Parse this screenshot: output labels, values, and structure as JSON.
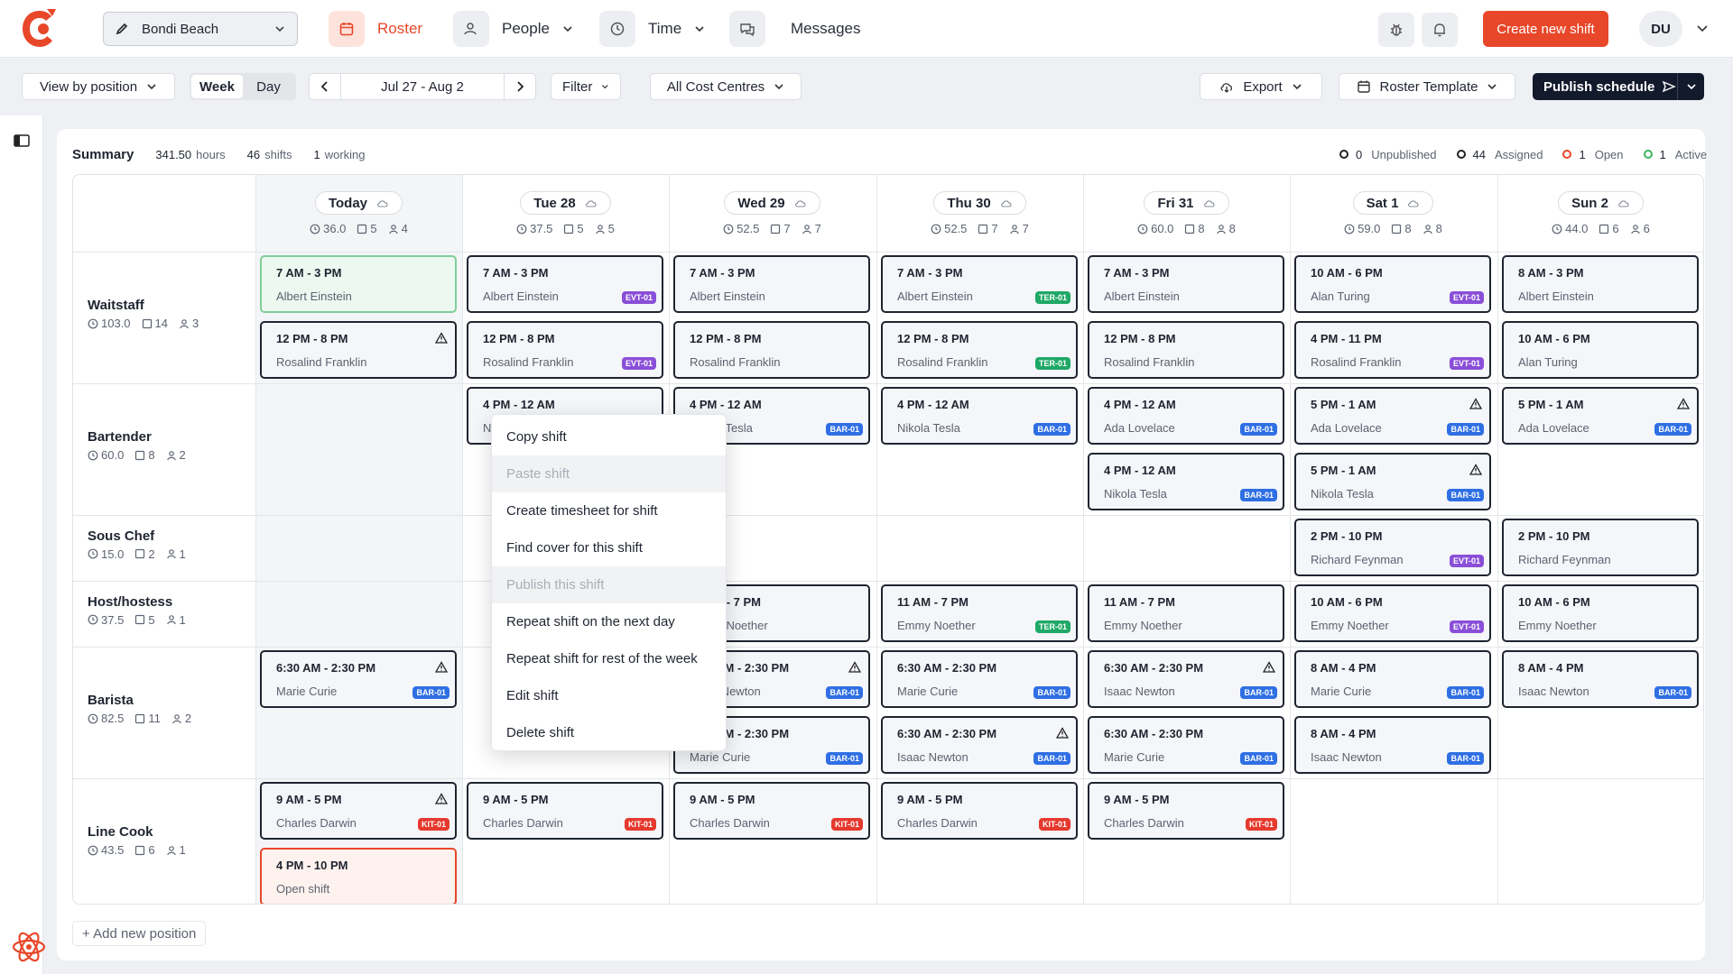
{
  "topbar": {
    "location": "Bondi Beach",
    "nav": [
      {
        "label": "Roster",
        "icon": "calendar-icon",
        "active": true
      },
      {
        "label": "People",
        "icon": "people-icon"
      },
      {
        "label": "Time",
        "icon": "clock-icon"
      },
      {
        "label": "Messages",
        "icon": "chat-icon"
      }
    ],
    "create_label": "Create new shift",
    "avatar_initials": "DU"
  },
  "toolbar": {
    "view_by": "View by position",
    "week_label": "Week",
    "day_label": "Day",
    "date_range": "Jul 27 - Aug 2",
    "filter_label": "Filter",
    "cost_centres": "All Cost Centres",
    "export_label": "Export",
    "template_label": "Roster Template",
    "publish_label": "Publish schedule"
  },
  "summary": {
    "label": "Summary",
    "hours_value": "341.50",
    "hours_unit": "hours",
    "shifts_value": "46",
    "shifts_unit": "shifts",
    "working_value": "1",
    "working_unit": "working",
    "legend": [
      {
        "count": "0",
        "label": "Unpublished",
        "color": "#222222"
      },
      {
        "count": "44",
        "label": "Assigned",
        "color": "#222222"
      },
      {
        "count": "1",
        "label": "Open",
        "color": "#e8472a"
      },
      {
        "count": "1",
        "label": "Active",
        "color": "#3bb55c"
      }
    ]
  },
  "days": [
    {
      "label": "Today",
      "hours": "36.0",
      "shifts": "5",
      "people": "4",
      "icon": "cloud-icon"
    },
    {
      "label": "Tue 28",
      "hours": "37.5",
      "shifts": "5",
      "people": "5",
      "icon": "rain-icon"
    },
    {
      "label": "Wed 29",
      "hours": "52.5",
      "shifts": "7",
      "people": "7",
      "icon": "cloud-icon"
    },
    {
      "label": "Thu 30",
      "hours": "52.5",
      "shifts": "7",
      "people": "7",
      "icon": "sun-icon"
    },
    {
      "label": "Fri 31",
      "hours": "60.0",
      "shifts": "8",
      "people": "8",
      "icon": "storm-icon"
    },
    {
      "label": "Sat 1",
      "hours": "59.0",
      "shifts": "8",
      "people": "8",
      "icon": "storm-icon"
    },
    {
      "label": "Sun 2",
      "hours": "44.0",
      "shifts": "6",
      "people": "6",
      "icon": "cloud-icon"
    }
  ],
  "positions": [
    {
      "name": "Waitstaff",
      "hours": "103.0",
      "shifts": "14",
      "people": "3"
    },
    {
      "name": "Bartender",
      "hours": "60.0",
      "shifts": "8",
      "people": "2"
    },
    {
      "name": "Sous Chef",
      "hours": "15.0",
      "shifts": "2",
      "people": "1"
    },
    {
      "name": "Host/hostess",
      "hours": "37.5",
      "shifts": "5",
      "people": "1"
    },
    {
      "name": "Barista",
      "hours": "82.5",
      "shifts": "11",
      "people": "2"
    },
    {
      "name": "Line Cook",
      "hours": "43.5",
      "shifts": "6",
      "people": "1"
    }
  ],
  "shifts": [
    {
      "day": 0,
      "slot": 0,
      "time": "7 AM - 3 PM",
      "name": "Albert Einstein",
      "state": "active"
    },
    {
      "day": 1,
      "slot": 0,
      "time": "7 AM - 3 PM",
      "name": "Albert Einstein",
      "badge": "EVT-01"
    },
    {
      "day": 2,
      "slot": 0,
      "time": "7 AM - 3 PM",
      "name": "Albert Einstein"
    },
    {
      "day": 3,
      "slot": 0,
      "time": "7 AM - 3 PM",
      "name": "Albert Einstein",
      "badge": "TER-01"
    },
    {
      "day": 4,
      "slot": 0,
      "time": "7 AM - 3 PM",
      "name": "Albert Einstein"
    },
    {
      "day": 5,
      "slot": 0,
      "time": "10 AM - 6 PM",
      "name": "Alan Turing",
      "badge": "EVT-01"
    },
    {
      "day": 6,
      "slot": 0,
      "time": "8 AM - 3 PM",
      "name": "Albert Einstein"
    },
    {
      "day": 0,
      "slot": 1,
      "time": "12 PM - 8 PM",
      "name": "Rosalind Franklin",
      "warn": true
    },
    {
      "day": 1,
      "slot": 1,
      "time": "12 PM - 8 PM",
      "name": "Rosalind Franklin",
      "badge": "EVT-01"
    },
    {
      "day": 2,
      "slot": 1,
      "time": "12 PM - 8 PM",
      "name": "Rosalind Franklin"
    },
    {
      "day": 3,
      "slot": 1,
      "time": "12 PM - 8 PM",
      "name": "Rosalind Franklin",
      "badge": "TER-01"
    },
    {
      "day": 4,
      "slot": 1,
      "time": "12 PM - 8 PM",
      "name": "Rosalind Franklin"
    },
    {
      "day": 5,
      "slot": 1,
      "time": "4 PM - 11 PM",
      "name": "Rosalind Franklin",
      "badge": "EVT-01"
    },
    {
      "day": 6,
      "slot": 1,
      "time": "10 AM - 6 PM",
      "name": "Alan Turing"
    },
    {
      "day": 1,
      "slot": 2,
      "time": "4 PM - 12 AM",
      "name": "Nikola Tesla"
    },
    {
      "day": 2,
      "slot": 2,
      "time": "4 PM - 12 AM",
      "name": "Nikola Tesla",
      "badge": "BAR-01"
    },
    {
      "day": 3,
      "slot": 2,
      "time": "4 PM - 12 AM",
      "name": "Nikola Tesla",
      "badge": "BAR-01"
    },
    {
      "day": 4,
      "slot": 2,
      "time": "4 PM - 12 AM",
      "name": "Ada Lovelace",
      "badge": "BAR-01"
    },
    {
      "day": 5,
      "slot": 2,
      "time": "5 PM - 1 AM",
      "name": "Ada Lovelace",
      "badge": "BAR-01",
      "warn": true
    },
    {
      "day": 6,
      "slot": 2,
      "time": "5 PM - 1 AM",
      "name": "Ada Lovelace",
      "badge": "BAR-01",
      "warn": true
    },
    {
      "day": 4,
      "slot": 3,
      "time": "4 PM - 12 AM",
      "name": "Nikola Tesla",
      "badge": "BAR-01"
    },
    {
      "day": 5,
      "slot": 3,
      "time": "5 PM - 1 AM",
      "name": "Nikola Tesla",
      "badge": "BAR-01",
      "warn": true
    },
    {
      "day": 5,
      "slot": 4,
      "time": "2 PM - 10 PM",
      "name": "Richard Feynman",
      "badge": "EVT-01"
    },
    {
      "day": 6,
      "slot": 4,
      "time": "2 PM - 10 PM",
      "name": "Richard Feynman"
    },
    {
      "day": 2,
      "slot": 5,
      "time": "11 AM - 7 PM",
      "name": "Emmy Noether"
    },
    {
      "day": 3,
      "slot": 5,
      "time": "11 AM - 7 PM",
      "name": "Emmy Noether",
      "badge": "TER-01"
    },
    {
      "day": 4,
      "slot": 5,
      "time": "11 AM - 7 PM",
      "name": "Emmy Noether"
    },
    {
      "day": 5,
      "slot": 5,
      "time": "10 AM - 6 PM",
      "name": "Emmy Noether",
      "badge": "EVT-01"
    },
    {
      "day": 6,
      "slot": 5,
      "time": "10 AM - 6 PM",
      "name": "Emmy Noether"
    },
    {
      "day": 0,
      "slot": 6,
      "time": "6:30 AM - 2:30 PM",
      "name": "Marie Curie",
      "badge": "BAR-01",
      "warn": true
    },
    {
      "day": 2,
      "slot": 6,
      "time": "6:30 AM - 2:30 PM",
      "name": "Isaac Newton",
      "badge": "BAR-01",
      "warn": true
    },
    {
      "day": 3,
      "slot": 6,
      "time": "6:30 AM - 2:30 PM",
      "name": "Marie Curie",
      "badge": "BAR-01"
    },
    {
      "day": 4,
      "slot": 6,
      "time": "6:30 AM - 2:30 PM",
      "name": "Isaac Newton",
      "badge": "BAR-01",
      "warn": true
    },
    {
      "day": 5,
      "slot": 6,
      "time": "8 AM - 4 PM",
      "name": "Marie Curie",
      "badge": "BAR-01"
    },
    {
      "day": 6,
      "slot": 6,
      "time": "8 AM - 4 PM",
      "name": "Isaac Newton",
      "badge": "BAR-01"
    },
    {
      "day": 2,
      "slot": 7,
      "time": "6:30 AM - 2:30 PM",
      "name": "Marie Curie",
      "badge": "BAR-01"
    },
    {
      "day": 3,
      "slot": 7,
      "time": "6:30 AM - 2:30 PM",
      "name": "Isaac Newton",
      "badge": "BAR-01",
      "warn": true
    },
    {
      "day": 4,
      "slot": 7,
      "time": "6:30 AM - 2:30 PM",
      "name": "Marie Curie",
      "badge": "BAR-01"
    },
    {
      "day": 5,
      "slot": 7,
      "time": "8 AM - 4 PM",
      "name": "Isaac Newton",
      "badge": "BAR-01"
    },
    {
      "day": 0,
      "slot": 8,
      "time": "9 AM - 5 PM",
      "name": "Charles Darwin",
      "badge": "KIT-01",
      "warn": true
    },
    {
      "day": 1,
      "slot": 8,
      "time": "9 AM - 5 PM",
      "name": "Charles Darwin",
      "badge": "KIT-01"
    },
    {
      "day": 2,
      "slot": 8,
      "time": "9 AM - 5 PM",
      "name": "Charles Darwin",
      "badge": "KIT-01"
    },
    {
      "day": 3,
      "slot": 8,
      "time": "9 AM - 5 PM",
      "name": "Charles Darwin",
      "badge": "KIT-01"
    },
    {
      "day": 4,
      "slot": 8,
      "time": "9 AM - 5 PM",
      "name": "Charles Darwin",
      "badge": "KIT-01"
    },
    {
      "day": 0,
      "slot": 9,
      "time": "4 PM - 10 PM",
      "name": "Open shift",
      "state": "open"
    }
  ],
  "context_menu": [
    {
      "label": "Copy shift"
    },
    {
      "label": "Paste shift",
      "disabled": true
    },
    {
      "label": "Create timesheet for shift"
    },
    {
      "label": "Find cover for this shift"
    },
    {
      "label": "Publish this shift",
      "disabled": true
    },
    {
      "label": "Repeat shift on the next day"
    },
    {
      "label": "Repeat shift for rest of the week"
    },
    {
      "label": "Edit shift"
    },
    {
      "label": "Delete shift"
    }
  ],
  "add_position_label": "+ Add new position",
  "colors": {
    "accent": "#e8472a",
    "evt": "#8a4fd8",
    "bar": "#2f6fe4",
    "ter": "#1fa866",
    "kit": "#e6392e"
  }
}
